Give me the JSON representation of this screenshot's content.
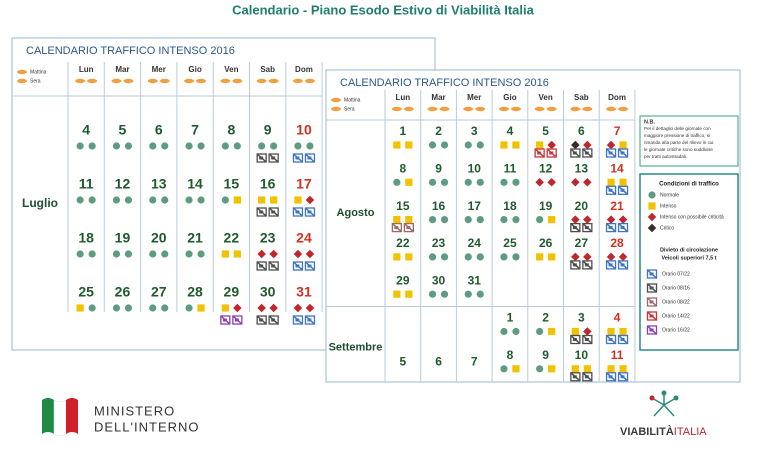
{
  "title": "Calendario - Piano Esodo Estivo di Viabilità Italia",
  "calendars": [
    {
      "heading": "CALENDARIO TRAFFICO INTENSO 2016",
      "mattina": "Mattina",
      "sera": "Sera",
      "weekdays": [
        "Lun",
        "Mar",
        "Mer",
        "Gio",
        "Ven",
        "Sab",
        "Dom"
      ],
      "months": [
        {
          "name": "Luglio",
          "weeks": [
            [
              {
                "day": 4,
                "am": 0,
                "pm": 0
              },
              {
                "day": 5,
                "am": 0,
                "pm": 0
              },
              {
                "day": 6,
                "am": 0,
                "pm": 0
              },
              {
                "day": 7,
                "am": 0,
                "pm": 0
              },
              {
                "day": 8,
                "am": 0,
                "pm": 0
              },
              {
                "day": 9,
                "am": 0,
                "pm": 0,
                "trucks": [
                  1,
                  1
                ]
              },
              {
                "day": 10,
                "am": 0,
                "pm": 0,
                "trucks": [
                  0,
                  0
                ]
              }
            ],
            [
              {
                "day": 11,
                "am": 0,
                "pm": 0
              },
              {
                "day": 12,
                "am": 0,
                "pm": 0
              },
              {
                "day": 13,
                "am": 0,
                "pm": 0
              },
              {
                "day": 14,
                "am": 0,
                "pm": 0
              },
              {
                "day": 15,
                "am": 0,
                "pm": 1
              },
              {
                "day": 16,
                "am": 1,
                "pm": 1,
                "trucks": [
                  1,
                  1
                ]
              },
              {
                "day": 17,
                "am": 1,
                "pm": 2,
                "trucks": [
                  0,
                  0
                ]
              }
            ],
            [
              {
                "day": 18,
                "am": 0,
                "pm": 0
              },
              {
                "day": 19,
                "am": 0,
                "pm": 0
              },
              {
                "day": 20,
                "am": 0,
                "pm": 0
              },
              {
                "day": 21,
                "am": 0,
                "pm": 0
              },
              {
                "day": 22,
                "am": 1,
                "pm": 1
              },
              {
                "day": 23,
                "am": 2,
                "pm": 2,
                "trucks": [
                  1,
                  1
                ]
              },
              {
                "day": 24,
                "am": 2,
                "pm": 2,
                "trucks": [
                  0,
                  0
                ]
              }
            ],
            [
              {
                "day": 25,
                "am": 1,
                "pm": 0
              },
              {
                "day": 26,
                "am": 0,
                "pm": 0
              },
              {
                "day": 27,
                "am": 0,
                "pm": 0
              },
              {
                "day": 28,
                "am": 0,
                "pm": 1
              },
              {
                "day": 29,
                "am": 1,
                "pm": 2,
                "trucks": [
                  4,
                  4
                ]
              },
              {
                "day": 30,
                "am": 2,
                "pm": 2,
                "trucks": [
                  1,
                  1
                ]
              },
              {
                "day": 31,
                "am": 2,
                "pm": 2,
                "trucks": [
                  0,
                  0
                ]
              }
            ]
          ]
        }
      ]
    },
    {
      "heading": "CALENDARIO TRAFFICO INTENSO 2016",
      "mattina": "Mattina",
      "sera": "Sera",
      "weekdays": [
        "Lun",
        "Mar",
        "Mer",
        "Gio",
        "Ven",
        "Sab",
        "Dom"
      ],
      "months": [
        {
          "name": "Agosto",
          "weeks": [
            [
              {
                "day": 1,
                "am": 1,
                "pm": 1
              },
              {
                "day": 2,
                "am": 0,
                "pm": 0
              },
              {
                "day": 3,
                "am": 0,
                "pm": 0
              },
              {
                "day": 4,
                "am": 1,
                "pm": 1
              },
              {
                "day": 5,
                "am": 1,
                "pm": 2,
                "trucks": [
                  3,
                  3
                ]
              },
              {
                "day": 6,
                "am": 3,
                "pm": 2,
                "trucks": [
                  1,
                  1
                ]
              },
              {
                "day": 7,
                "am": 2,
                "pm": 1,
                "trucks": [
                  0,
                  0
                ]
              }
            ],
            [
              {
                "day": 8,
                "am": 0,
                "pm": 1
              },
              {
                "day": 9,
                "am": 0,
                "pm": 0
              },
              {
                "day": 10,
                "am": 0,
                "pm": 0
              },
              {
                "day": 11,
                "am": 0,
                "pm": 0
              },
              {
                "day": 12,
                "am": 2,
                "pm": 2
              },
              {
                "day": 13,
                "am": 2,
                "pm": 2
              },
              {
                "day": 14,
                "am": 1,
                "pm": 1,
                "trucks": [
                  0,
                  0
                ]
              }
            ],
            [
              {
                "day": 15,
                "am": 1,
                "pm": 1,
                "trucks": [
                  2,
                  2
                ]
              },
              {
                "day": 16,
                "am": 0,
                "pm": 0
              },
              {
                "day": 17,
                "am": 0,
                "pm": 0
              },
              {
                "day": 18,
                "am": 0,
                "pm": 0
              },
              {
                "day": 19,
                "am": 0,
                "pm": 1
              },
              {
                "day": 20,
                "am": 2,
                "pm": 2,
                "trucks": [
                  1,
                  1
                ]
              },
              {
                "day": 21,
                "am": 2,
                "pm": 2,
                "trucks": [
                  0,
                  0
                ]
              }
            ],
            [
              {
                "day": 22,
                "am": 1,
                "pm": 1
              },
              {
                "day": 23,
                "am": 0,
                "pm": 0
              },
              {
                "day": 24,
                "am": 0,
                "pm": 0
              },
              {
                "day": 25,
                "am": 0,
                "pm": 0
              },
              {
                "day": 26,
                "am": 1,
                "pm": 1
              },
              {
                "day": 27,
                "am": 2,
                "pm": 2,
                "trucks": [
                  1,
                  1
                ]
              },
              {
                "day": 28,
                "am": 2,
                "pm": 2,
                "trucks": [
                  0,
                  0
                ]
              }
            ],
            [
              {
                "day": 29,
                "am": 1,
                "pm": 1
              },
              {
                "day": 30,
                "am": 0,
                "pm": 0
              },
              {
                "day": 31,
                "am": 0,
                "pm": 0
              },
              null,
              null,
              null,
              null
            ]
          ]
        },
        {
          "name": "Settembre",
          "weeks": [
            [
              null,
              null,
              null,
              {
                "day": 1,
                "am": 0,
                "pm": 0
              },
              {
                "day": 2,
                "am": 0,
                "pm": 1
              },
              {
                "day": 3,
                "am": 1,
                "pm": 2,
                "trucks": [
                  1,
                  1
                ]
              },
              {
                "day": 4,
                "am": 1,
                "pm": 1,
                "trucks": [
                  0,
                  0
                ]
              }
            ],
            [
              {
                "day": 5
              },
              {
                "day": 6
              },
              {
                "day": 7
              },
              {
                "day": 8,
                "am": 0,
                "pm": 1
              },
              {
                "day": 9,
                "am": 0,
                "pm": 1
              },
              {
                "day": 10,
                "am": 1,
                "pm": 1,
                "trucks": [
                  1,
                  1
                ]
              },
              {
                "day": 11,
                "am": 1,
                "pm": 1,
                "trucks": [
                  0,
                  0
                ]
              }
            ]
          ]
        }
      ]
    }
  ],
  "note": [
    "N.B.",
    "Per il dettaglio delle giornate con",
    "maggiore pressione di traffico, si",
    "rimanda alla parte del rilievo in cui",
    "le giornate critiche sono suddivise",
    "per tratti autostradali."
  ],
  "legend": {
    "title": "Condizioni di traffico",
    "conditions": [
      {
        "label": "Normale",
        "color": "#5e9c82",
        "shape": "circle"
      },
      {
        "label": "Intenso",
        "color": "#f2c200",
        "shape": "square"
      },
      {
        "label": "Intenso con possibile criticità",
        "color": "#c0262c",
        "shape": "diamond"
      },
      {
        "label": "Critico",
        "color": "#3a2a2a",
        "shape": "diamond"
      }
    ],
    "ban_title": [
      "Divieto di circolazione",
      "Veicoli superiori 7,5 t"
    ],
    "trucks": [
      {
        "label": "Orario 07/22",
        "color": "#3f74c0"
      },
      {
        "label": "Orario 08/16",
        "color": "#4d4d4d"
      },
      {
        "label": "Orario 08/22",
        "color": "#9a6a6a"
      },
      {
        "label": "Orario 14/22",
        "color": "#c8343a"
      },
      {
        "label": "Orario 16/22",
        "color": "#8a3fb0"
      }
    ]
  },
  "logos": {
    "ministero": [
      "MINISTERO",
      "DELL'INTERNO"
    ],
    "viabilita": [
      "VIABILITÀ",
      "ITALIA"
    ]
  }
}
